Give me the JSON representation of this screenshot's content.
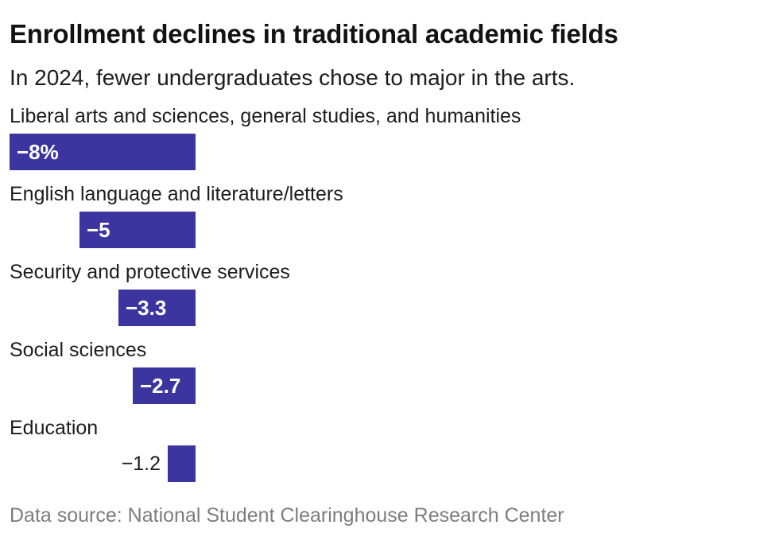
{
  "header": {
    "title": "Enrollment declines in traditional academic fields",
    "subtitle": "In 2024, fewer undergraduates chose to major in the arts."
  },
  "footer": {
    "source": "Data source: National Student Clearinghouse Research Center"
  },
  "colors": {
    "bar": "#3c35a0",
    "title_text": "#121212",
    "body_text": "#1d1d1d",
    "inside_value_text": "#ffffff",
    "footer_text": "#7d7d7d",
    "background": "#ffffff"
  },
  "chart_data": {
    "type": "bar",
    "orientation": "horizontal",
    "title": "Enrollment declines in traditional academic fields",
    "subtitle": "In 2024, fewer undergraduates chose to major in the arts.",
    "categories": [
      "Liberal arts and sciences, general studies, and humanities",
      "English language and literature/letters",
      "Security and protective services",
      "Social sciences",
      "Education"
    ],
    "values": [
      -8,
      -5,
      -3.3,
      -2.7,
      -1.2
    ],
    "value_labels": [
      "−8%",
      "−5",
      "−3.3",
      "−2.7",
      "−1.2"
    ],
    "label_positions": [
      "inside",
      "inside",
      "inside",
      "inside",
      "outside"
    ],
    "unit": "percent change",
    "xlim": [
      -8,
      0
    ],
    "grid": false,
    "legend": false,
    "bar_color": "#3c35a0",
    "source_note": "Data source: National Student Clearinghouse Research Center"
  }
}
